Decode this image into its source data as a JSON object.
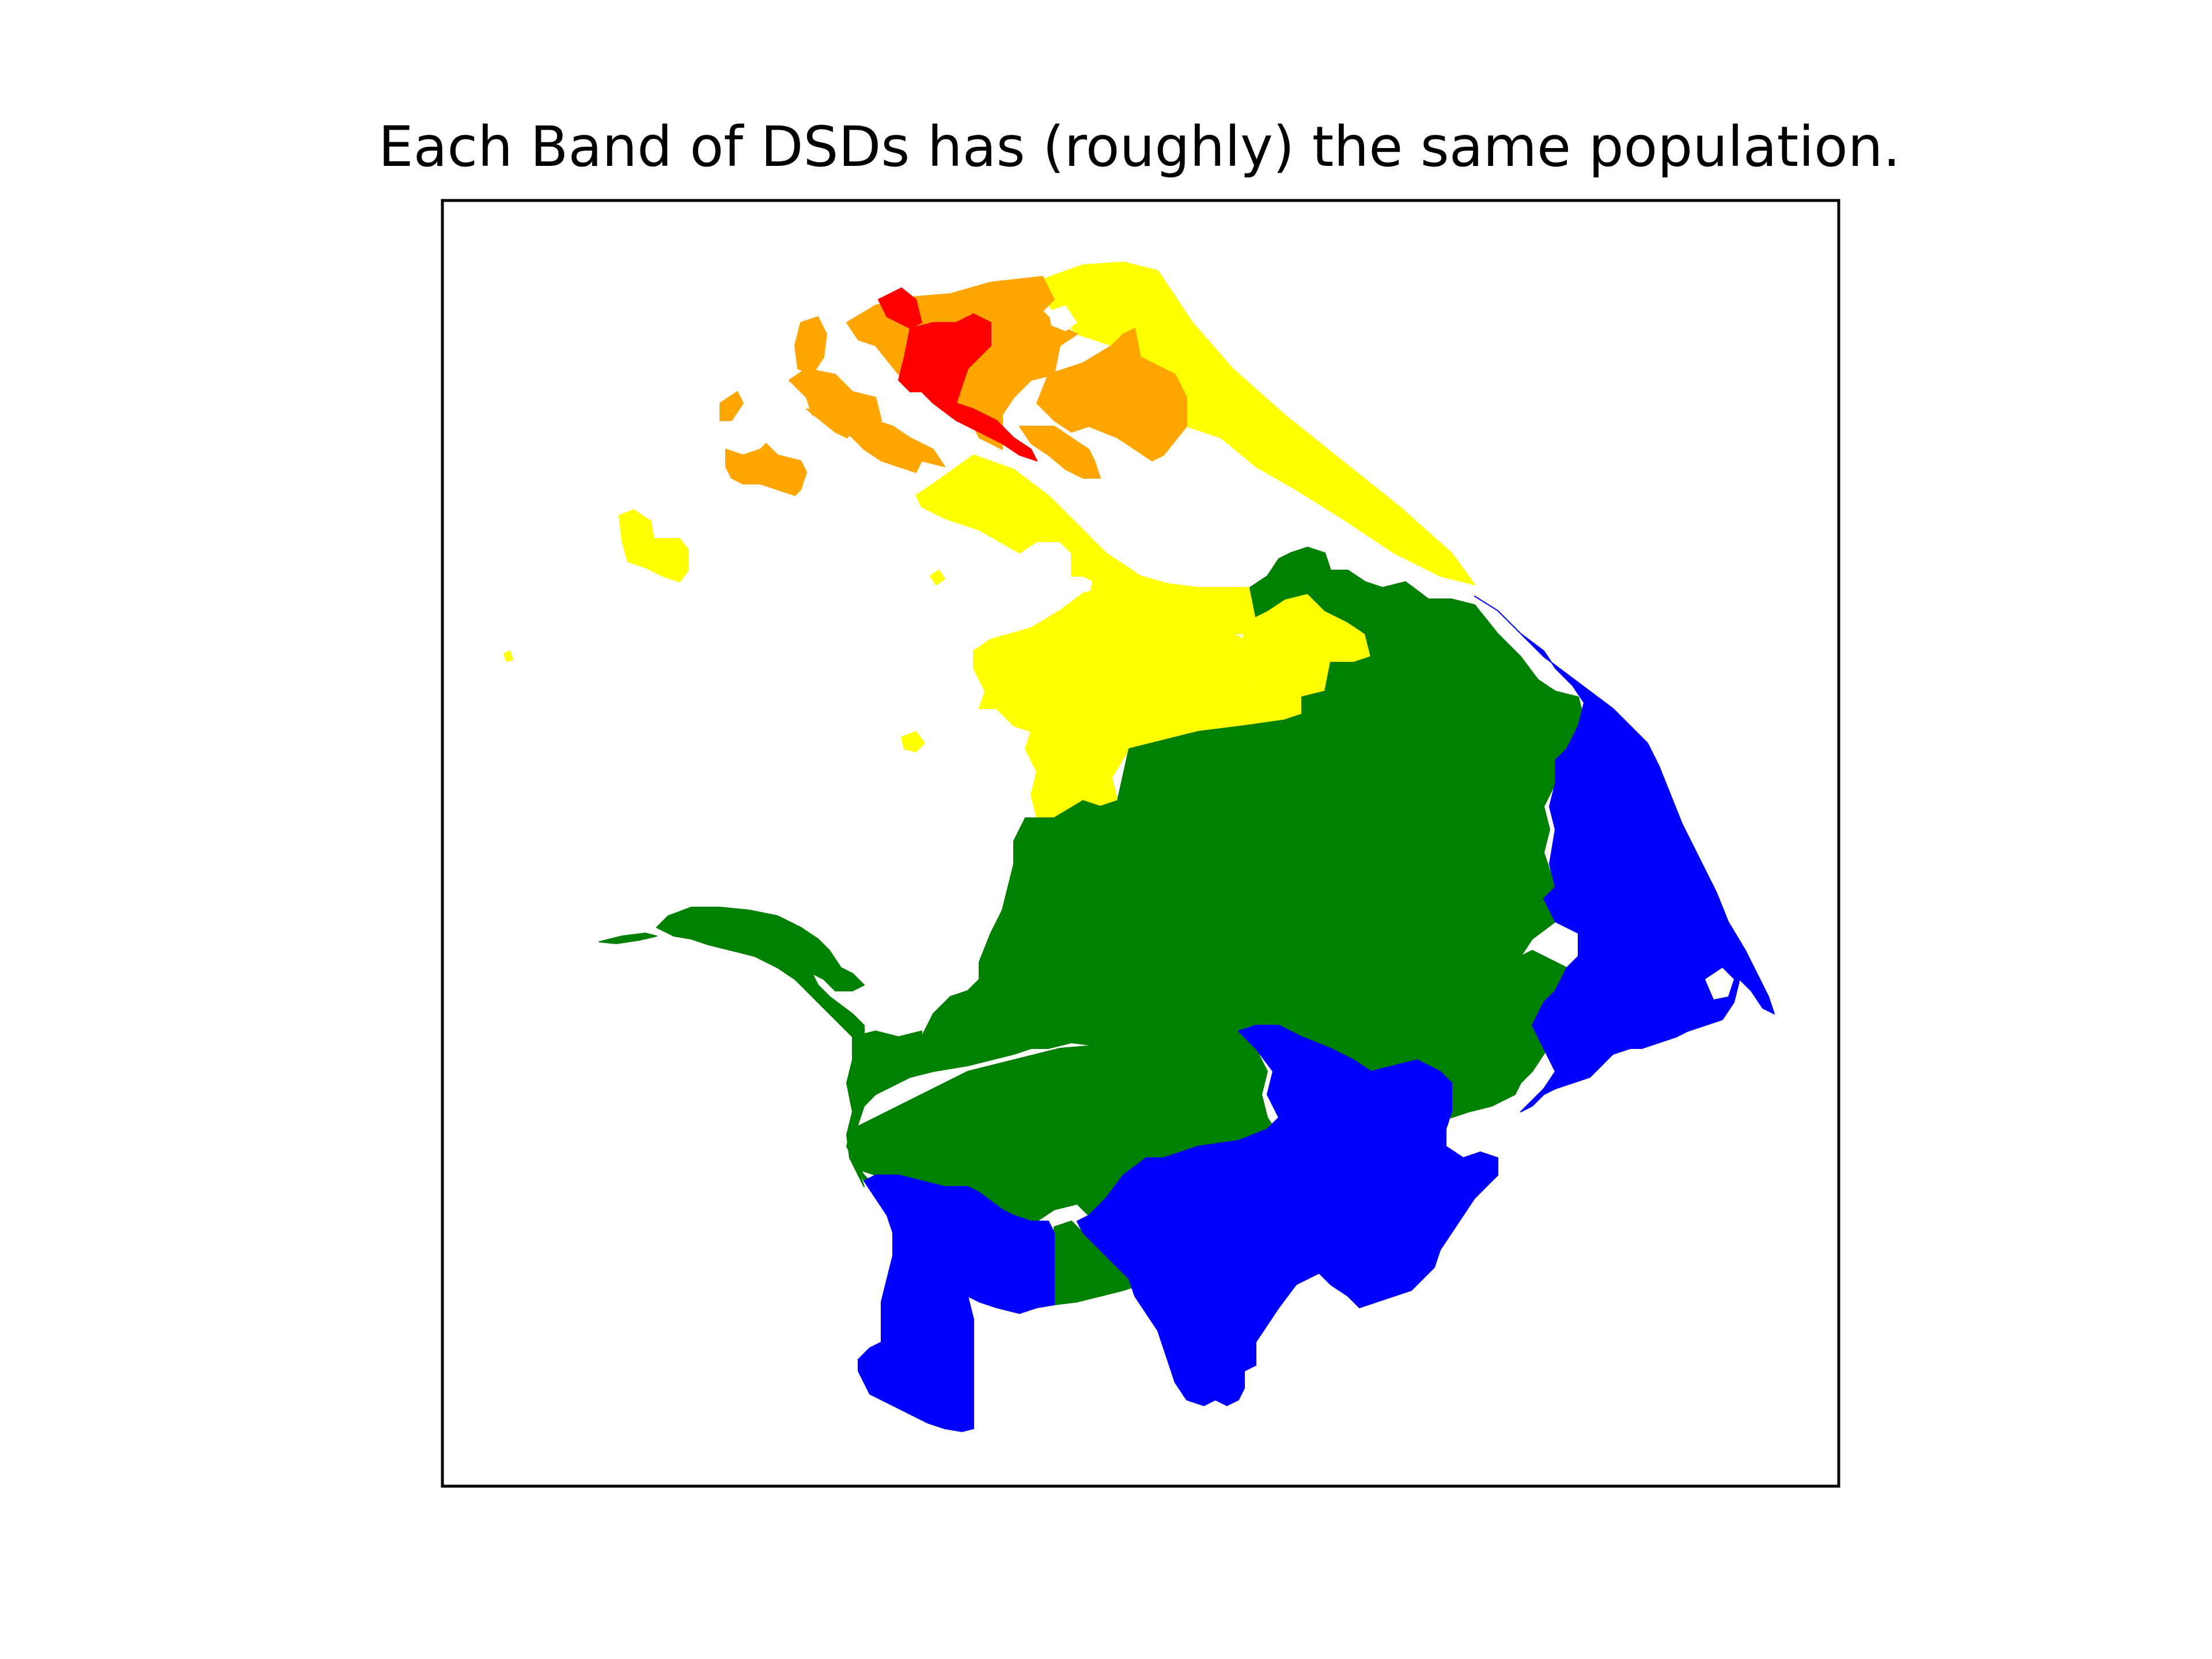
{
  "figure": {
    "title": "Each Band of DSDs has (roughly) the same population."
  },
  "legend_colors": {
    "band_red": "#ff0000",
    "band_orange": "#ffa500",
    "band_yellow": "#ffff00",
    "band_green": "#008000",
    "band_blue": "#0000ff"
  },
  "bands": [
    {
      "id": "band_red",
      "color": "#ff0000"
    },
    {
      "id": "band_orange",
      "color": "#ffa500"
    },
    {
      "id": "band_yellow",
      "color": "#ffff00"
    },
    {
      "id": "band_green",
      "color": "#008000"
    },
    {
      "id": "band_blue",
      "color": "#0000ff"
    }
  ],
  "axes": {
    "frame": true,
    "ticks": false,
    "grid": false
  }
}
